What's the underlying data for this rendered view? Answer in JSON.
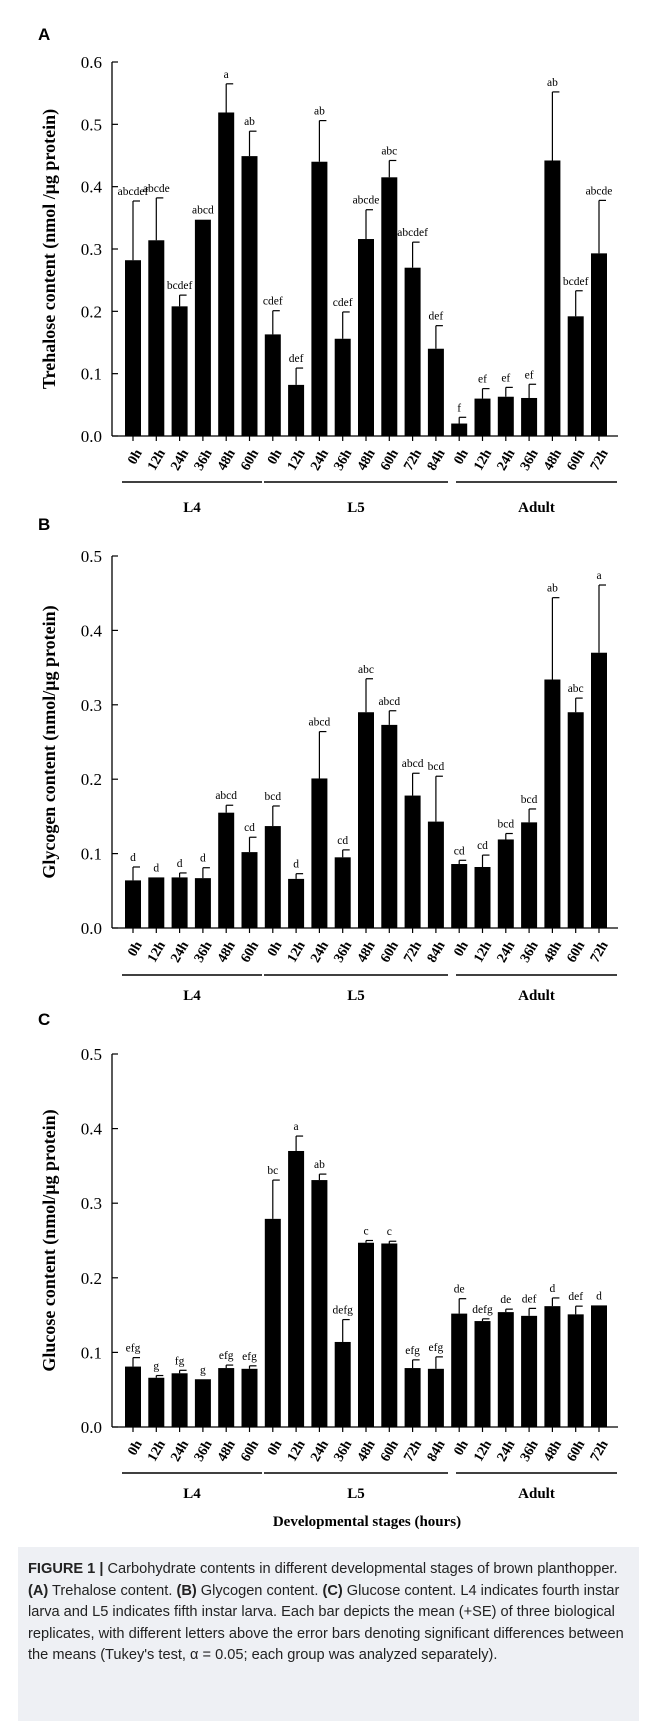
{
  "chart_data": [
    {
      "panel": "A",
      "type": "bar",
      "ylabel": "Trehalose content (nmol /μg protein)",
      "ylim": [
        0,
        0.6
      ],
      "yticks": [
        "0.0",
        "0.1",
        "0.2",
        "0.3",
        "0.4",
        "0.5",
        "0.6"
      ],
      "categories": [
        "0h",
        "12h",
        "24h",
        "36h",
        "48h",
        "60h",
        "0h",
        "12h",
        "24h",
        "36h",
        "48h",
        "60h",
        "72h",
        "84h",
        "0h",
        "12h",
        "24h",
        "36h",
        "48h",
        "60h",
        "72h"
      ],
      "values": [
        0.282,
        0.314,
        0.208,
        0.347,
        0.519,
        0.449,
        0.163,
        0.082,
        0.44,
        0.156,
        0.316,
        0.415,
        0.27,
        0.14,
        0.02,
        0.06,
        0.063,
        0.061,
        0.442,
        0.192,
        0.293
      ],
      "errors": [
        0.095,
        0.068,
        0.018,
        0.0,
        0.046,
        0.04,
        0.038,
        0.027,
        0.066,
        0.043,
        0.047,
        0.027,
        0.041,
        0.037,
        0.01,
        0.016,
        0.015,
        0.022,
        0.11,
        0.041,
        0.085
      ],
      "labels": [
        "abcdef",
        "abcde",
        "bcdef",
        "abcd",
        "a",
        "ab",
        "cdef",
        "def",
        "ab",
        "cdef",
        "abcde",
        "abc",
        "abcdef",
        "def",
        "f",
        "ef",
        "ef",
        "ef",
        "ab",
        "bcdef",
        "abcde"
      ],
      "groups": [
        {
          "name": "L4",
          "start": 0,
          "end": 5
        },
        {
          "name": "L5",
          "start": 6,
          "end": 13
        },
        {
          "name": "Adult",
          "start": 14,
          "end": 20
        }
      ]
    },
    {
      "panel": "B",
      "type": "bar",
      "ylabel": "Glycogen content (nmol/μg protein)",
      "ylim": [
        0,
        0.5
      ],
      "yticks": [
        "0.0",
        "0.1",
        "0.2",
        "0.3",
        "0.4",
        "0.5"
      ],
      "categories": [
        "0h",
        "12h",
        "24h",
        "36h",
        "48h",
        "60h",
        "0h",
        "12h",
        "24h",
        "36h",
        "48h",
        "60h",
        "72h",
        "84h",
        "0h",
        "12h",
        "24h",
        "36h",
        "48h",
        "60h",
        "72h"
      ],
      "values": [
        0.064,
        0.068,
        0.068,
        0.067,
        0.155,
        0.102,
        0.137,
        0.066,
        0.201,
        0.095,
        0.29,
        0.273,
        0.178,
        0.143,
        0.086,
        0.082,
        0.119,
        0.142,
        0.334,
        0.29,
        0.37
      ],
      "errors": [
        0.018,
        0.0,
        0.006,
        0.014,
        0.01,
        0.02,
        0.027,
        0.007,
        0.063,
        0.01,
        0.045,
        0.019,
        0.03,
        0.061,
        0.005,
        0.016,
        0.008,
        0.018,
        0.11,
        0.019,
        0.091
      ],
      "labels": [
        "d",
        "d",
        "d",
        "d",
        "abcd",
        "cd",
        "bcd",
        "d",
        "abcd",
        "cd",
        "abc",
        "abcd",
        "abcd",
        "bcd",
        "cd",
        "cd",
        "bcd",
        "bcd",
        "ab",
        "abc",
        "a"
      ],
      "groups": [
        {
          "name": "L4",
          "start": 0,
          "end": 5
        },
        {
          "name": "L5",
          "start": 6,
          "end": 13
        },
        {
          "name": "Adult",
          "start": 14,
          "end": 20
        }
      ]
    },
    {
      "panel": "C",
      "type": "bar",
      "ylabel": "Glucose content (nmol/μg protein)",
      "xlabel": "Developmental stages (hours)",
      "ylim": [
        0,
        0.5
      ],
      "yticks": [
        "0.0",
        "0.1",
        "0.2",
        "0.3",
        "0.4",
        "0.5"
      ],
      "categories": [
        "0h",
        "12h",
        "24h",
        "36h",
        "48h",
        "60h",
        "0h",
        "12h",
        "24h",
        "36h",
        "48h",
        "60h",
        "72h",
        "84h",
        "0h",
        "12h",
        "24h",
        "36h",
        "48h",
        "60h",
        "72h"
      ],
      "values": [
        0.081,
        0.066,
        0.072,
        0.064,
        0.079,
        0.078,
        0.279,
        0.37,
        0.331,
        0.114,
        0.247,
        0.246,
        0.079,
        0.078,
        0.152,
        0.142,
        0.154,
        0.149,
        0.162,
        0.151,
        0.163
      ],
      "errors": [
        0.012,
        0.003,
        0.004,
        0.0,
        0.004,
        0.004,
        0.052,
        0.02,
        0.008,
        0.03,
        0.003,
        0.003,
        0.011,
        0.016,
        0.02,
        0.003,
        0.004,
        0.01,
        0.011,
        0.011,
        0.0
      ],
      "labels": [
        "efg",
        "g",
        "fg",
        "g",
        "efg",
        "efg",
        "bc",
        "a",
        "ab",
        "defg",
        "c",
        "c",
        "efg",
        "efg",
        "de",
        "defg",
        "de",
        "def",
        "d",
        "def",
        "d"
      ],
      "groups": [
        {
          "name": "L4",
          "start": 0,
          "end": 5
        },
        {
          "name": "L5",
          "start": 6,
          "end": 13
        },
        {
          "name": "Adult",
          "start": 14,
          "end": 20
        }
      ]
    }
  ],
  "caption": {
    "label": "FIGURE 1 |",
    "text_1": " Carbohydrate contents in different developmental stages of brown planthopper. ",
    "a_label": "(A)",
    "a_text": " Trehalose content. ",
    "b_label": "(B)",
    "b_text": " Glycogen content. ",
    "c_label": "(C)",
    "c_text": " Glucose content. L4 indicates fourth instar larva and L5 indicates fifth instar larva. Each bar depicts the mean (+SE) of three biological replicates, with different letters above the error bars denoting significant differences between the means (Tukey's test, α = 0.05; each group was analyzed separately)."
  }
}
